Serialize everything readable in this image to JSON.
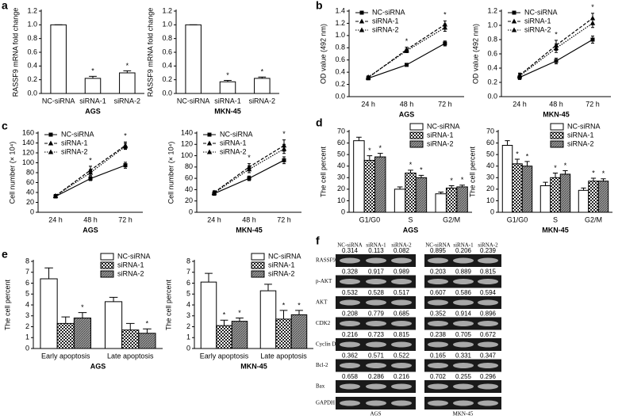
{
  "chart_data": [
    {
      "type": "bar",
      "panel": "a",
      "ylabel": "RASSF9 mRNA fold change",
      "xlabel": "AGS",
      "categories": [
        "NC-siRNA",
        "siRNA-1",
        "siRNA-2"
      ],
      "series": [
        {
          "pattern": "none",
          "values": [
            1,
            0.22,
            0.3
          ],
          "errors": [
            0,
            0.03,
            0.03
          ],
          "stars": [
            null,
            "*",
            "*"
          ]
        }
      ],
      "ylim": [
        0,
        1.2
      ],
      "yticks": [
        {
          "value": 0,
          "label": "0.0"
        },
        0.2,
        0.4,
        0.6,
        0.8,
        {
          "value": 1,
          "label": "1.0"
        },
        1.2
      ]
    },
    {
      "type": "bar",
      "ylabel": "RASSF9 mRNA fold change",
      "xlabel": "MKN-45",
      "categories": [
        "NC-siRNA",
        "siRNA-1",
        "siRNA-2"
      ],
      "series": [
        {
          "pattern": "none",
          "values": [
            1,
            0.17,
            0.22
          ],
          "errors": [
            0,
            0.02,
            0.02
          ],
          "stars": [
            null,
            "*",
            "*"
          ]
        }
      ],
      "ylim": [
        0,
        1.2
      ],
      "yticks": [
        {
          "value": 0,
          "label": "0.0"
        },
        0.2,
        0.4,
        0.6,
        0.8,
        {
          "value": 1,
          "label": "1.0"
        },
        1.2
      ]
    },
    {
      "type": "line",
      "panel": "b",
      "ylabel": "OD value (492 nm)",
      "xlabel": "AGS",
      "categories": [
        "24 h",
        "48 h",
        "72 h"
      ],
      "legend": "upper left",
      "series": [
        {
          "name": "NC-siRNA",
          "marker": "square",
          "dash": "solid",
          "values": [
            0.3,
            0.52,
            0.87
          ],
          "errors": [
            0.02,
            0.02,
            0.04
          ]
        },
        {
          "name": "siRNA-1",
          "marker": "triangle",
          "dash": "dashed",
          "values": [
            0.31,
            0.77,
            1.18
          ],
          "errors": [
            0.02,
            0.04,
            0.06
          ]
        },
        {
          "name": "siRNA-2",
          "marker": "triangle",
          "dash": "dotted",
          "values": [
            0.32,
            0.75,
            1.13
          ],
          "errors": [
            0.02,
            0.03,
            0.06
          ]
        }
      ],
      "stars": [
        null,
        "*",
        "*"
      ],
      "ylim": [
        0,
        1.4
      ],
      "yticks": [
        {
          "value": 0,
          "label": "0.0"
        },
        0.2,
        0.4,
        0.6,
        0.8,
        {
          "value": 1,
          "label": "1.0"
        },
        1.2,
        1.4
      ]
    },
    {
      "type": "line",
      "ylabel": "OD value (492 nm)",
      "xlabel": "MKN-45",
      "categories": [
        "24 h",
        "48 h",
        "72 h"
      ],
      "legend": "upper left",
      "series": [
        {
          "name": "NC-siRNA",
          "marker": "square",
          "dash": "solid",
          "values": [
            0.27,
            0.5,
            0.8
          ],
          "errors": [
            0.03,
            0.04,
            0.05
          ]
        },
        {
          "name": "siRNA-1",
          "marker": "triangle",
          "dash": "dashed",
          "values": [
            0.3,
            0.72,
            1.1
          ],
          "errors": [
            0.03,
            0.07,
            0.07
          ]
        },
        {
          "name": "siRNA-2",
          "marker": "triangle",
          "dash": "dotted",
          "values": [
            0.29,
            0.68,
            1.03
          ],
          "errors": [
            0.03,
            0.06,
            0.06
          ]
        }
      ],
      "stars": [
        null,
        "*",
        "*"
      ],
      "ylim": [
        0,
        1.2
      ],
      "yticks": [
        {
          "value": 0,
          "label": "0.0"
        },
        0.2,
        0.4,
        0.6,
        0.8,
        {
          "value": 1,
          "label": "1.0"
        },
        1.2
      ]
    },
    {
      "type": "line",
      "panel": "c",
      "ylabel": "Cell number (× 10⁴)",
      "xlabel": "AGS",
      "categories": [
        "24 h",
        "48 h",
        "72 h"
      ],
      "legend": "upper left",
      "series": [
        {
          "name": "NC-siRNA",
          "marker": "square",
          "dash": "solid",
          "values": [
            32,
            68,
            95
          ],
          "errors": [
            3,
            4,
            6
          ]
        },
        {
          "name": "siRNA-1",
          "marker": "triangle",
          "dash": "dashed",
          "values": [
            33,
            85,
            135
          ],
          "errors": [
            3,
            8,
            7
          ]
        },
        {
          "name": "siRNA-2",
          "marker": "triangle",
          "dash": "dotted",
          "values": [
            33,
            80,
            133
          ],
          "errors": [
            3,
            6,
            6
          ]
        }
      ],
      "stars": [
        null,
        "*",
        "*"
      ],
      "ylim": [
        0,
        160
      ],
      "yticks": [
        0,
        20,
        40,
        60,
        80,
        100,
        120,
        140,
        160
      ]
    },
    {
      "type": "line",
      "ylabel": "Cell number (× 10⁴)",
      "xlabel": "MKN-45",
      "categories": [
        "24 h",
        "48 h",
        "72 h"
      ],
      "legend": "upper left",
      "series": [
        {
          "name": "NC-siRNA",
          "marker": "square",
          "dash": "solid",
          "values": [
            33,
            60,
            92
          ],
          "errors": [
            3,
            4,
            6
          ]
        },
        {
          "name": "siRNA-1",
          "marker": "triangle",
          "dash": "dashed",
          "values": [
            35,
            80,
            118
          ],
          "errors": [
            3,
            6,
            10
          ]
        },
        {
          "name": "siRNA-2",
          "marker": "triangle",
          "dash": "dotted",
          "values": [
            34,
            76,
            112
          ],
          "errors": [
            3,
            6,
            8
          ]
        }
      ],
      "stars": [
        null,
        "*",
        "*"
      ],
      "ylim": [
        0,
        140
      ],
      "yticks": [
        0,
        20,
        40,
        60,
        80,
        100,
        120,
        140
      ]
    },
    {
      "type": "bar",
      "panel": "d",
      "ylabel": "The cell percent",
      "xlabel": "AGS",
      "categories": [
        "G1/G0",
        "S",
        "G2/M"
      ],
      "legend": "upper right",
      "series": [
        {
          "name": "NC-siRNA",
          "pattern": "none",
          "values": [
            62,
            20,
            16
          ],
          "errors": [
            3,
            2,
            1.5
          ],
          "stars": [
            null,
            null,
            null
          ]
        },
        {
          "name": "siRNA-1",
          "pattern": "checker",
          "values": [
            45,
            34,
            21
          ],
          "errors": [
            4,
            2.5,
            2
          ],
          "stars": [
            "*",
            "*",
            "*"
          ]
        },
        {
          "name": "siRNA-2",
          "pattern": "hatch",
          "values": [
            48,
            30,
            22
          ],
          "errors": [
            3,
            2,
            1.5
          ],
          "stars": [
            "*",
            "*",
            "*"
          ]
        }
      ],
      "ylim": [
        0,
        70
      ],
      "yticks": [
        0,
        10,
        20,
        30,
        40,
        50,
        60,
        70
      ]
    },
    {
      "type": "bar",
      "ylabel": "The cell percent",
      "xlabel": "MKN-45",
      "categories": [
        "G1/G0",
        "S",
        "G2/M"
      ],
      "legend": "upper right",
      "series": [
        {
          "name": "NC-siRNA",
          "pattern": "none",
          "values": [
            58,
            23,
            19
          ],
          "errors": [
            4,
            3,
            2
          ],
          "stars": [
            null,
            null,
            null
          ]
        },
        {
          "name": "siRNA-1",
          "pattern": "checker",
          "values": [
            42,
            30,
            27
          ],
          "errors": [
            4,
            4,
            2.5
          ],
          "stars": [
            "*",
            "*",
            "*"
          ]
        },
        {
          "name": "siRNA-2",
          "pattern": "hatch",
          "values": [
            40,
            33,
            27
          ],
          "errors": [
            4,
            3,
            2
          ],
          "stars": [
            "*",
            "*",
            "*"
          ]
        }
      ],
      "ylim": [
        0,
        70
      ],
      "yticks": [
        0,
        10,
        20,
        30,
        40,
        50,
        60,
        70
      ]
    },
    {
      "type": "bar",
      "panel": "e",
      "ylabel": "The cell percent",
      "xlabel": "AGS",
      "categories": [
        "Early apoptosis",
        "Late apoptosis"
      ],
      "legend": "upper right",
      "series": [
        {
          "name": "NC-siRNA",
          "pattern": "none",
          "values": [
            6.4,
            4.3
          ],
          "errors": [
            1,
            0.4
          ],
          "stars": [
            null,
            null
          ]
        },
        {
          "name": "siRNA-1",
          "pattern": "checker",
          "values": [
            2.3,
            1.7
          ],
          "errors": [
            0.6,
            0.6
          ],
          "stars": [
            null,
            null
          ]
        },
        {
          "name": "siRNA-2",
          "pattern": "hatch",
          "values": [
            2.8,
            1.4
          ],
          "errors": [
            0.5,
            0.4
          ],
          "stars": [
            "*",
            "*"
          ]
        }
      ],
      "ylim": [
        0,
        8
      ],
      "yticks": [
        0,
        1,
        2,
        3,
        4,
        5,
        6,
        7,
        8
      ]
    },
    {
      "type": "bar",
      "ylabel": "The cell percent",
      "xlabel": "MKN-45",
      "categories": [
        "Early apoptosis",
        "Late apoptosis"
      ],
      "legend": "upper right",
      "series": [
        {
          "name": "NC-siRNA",
          "pattern": "none",
          "values": [
            6.1,
            5.3
          ],
          "errors": [
            0.8,
            0.6
          ],
          "stars": [
            null,
            null
          ]
        },
        {
          "name": "siRNA-1",
          "pattern": "checker",
          "values": [
            2.1,
            2.7
          ],
          "errors": [
            0.5,
            0.8
          ],
          "stars": [
            "*",
            "*"
          ]
        },
        {
          "name": "siRNA-2",
          "pattern": "hatch",
          "values": [
            2.5,
            3.1
          ],
          "errors": [
            0.3,
            0.4
          ],
          "stars": [
            "*",
            "*"
          ]
        }
      ],
      "ylim": [
        0,
        8
      ],
      "yticks": [
        0,
        1,
        2,
        3,
        4,
        5,
        6,
        7,
        8
      ]
    }
  ],
  "blot": {
    "panel": "f",
    "columns": [
      "NC-siRNA",
      "siRNA-1",
      "siRNA-2",
      "NC-siRNA",
      "siRNA-1",
      "siRNA-2"
    ],
    "groups": [
      "AGS",
      "MKN-45"
    ],
    "rows": [
      {
        "label": "RASSF9",
        "values": [
          "0.314",
          "0.113",
          "0.082",
          "0.895",
          "0.206",
          "0.239"
        ]
      },
      {
        "label": "p-AKT",
        "values": [
          "0.328",
          "0.917",
          "0.989",
          "0.203",
          "0.889",
          "0.815"
        ]
      },
      {
        "label": "AKT",
        "values": [
          "0.532",
          "0.528",
          "0.517",
          "0.607",
          "0.586",
          "0.594"
        ]
      },
      {
        "label": "CDK2",
        "values": [
          "0.208",
          "0.779",
          "0.685",
          "0.352",
          "0.914",
          "0.896"
        ]
      },
      {
        "label": "Cyclin D1",
        "values": [
          "0.216",
          "0.723",
          "0.815",
          "0.238",
          "0.705",
          "0.672"
        ]
      },
      {
        "label": "Bcl-2",
        "values": [
          "0.362",
          "0.571",
          "0.522",
          "0.165",
          "0.331",
          "0.347"
        ]
      },
      {
        "label": "Bax",
        "values": [
          "0.658",
          "0.286",
          "0.216",
          "0.702",
          "0.255",
          "0.296"
        ]
      },
      {
        "label": "GAPDH"
      }
    ]
  }
}
